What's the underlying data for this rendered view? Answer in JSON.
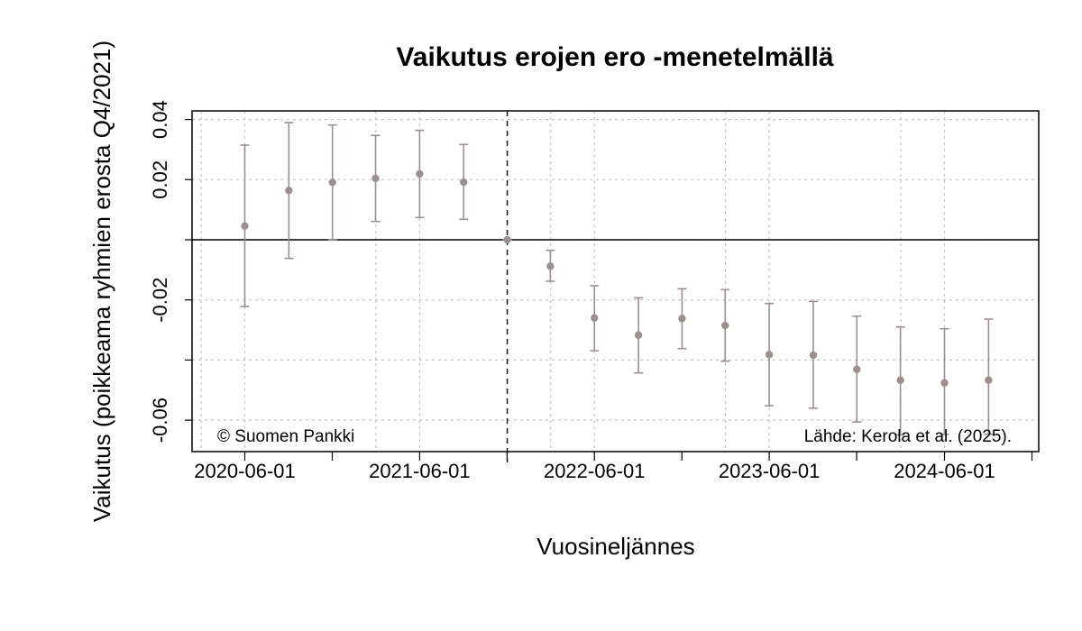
{
  "chart_data": {
    "type": "scatter",
    "title": "Vaikutus erojen ero -menetelmällä",
    "xlabel": "Vuosineljännes",
    "ylabel": "Vaikutus (poikkeama ryhmien erosta Q4/2021)",
    "x_tick_labels": [
      "2020-06-01",
      "2021-06-01",
      "2022-06-01",
      "2023-06-01",
      "2024-06-01"
    ],
    "y_tick_labels": [
      "-0.06",
      "-0.02",
      "0.02",
      "0.04"
    ],
    "ylim": [
      -0.07,
      0.043
    ],
    "reference_line_y": 0,
    "reference_quarter": "2021-12-01",
    "grid": true,
    "point_color": "#9e8f8f",
    "series": [
      {
        "x": [
          "2020-06-01",
          "2020-09-01",
          "2020-12-01",
          "2021-03-01",
          "2021-06-01",
          "2021-09-01",
          "2021-12-01",
          "2022-03-01",
          "2022-06-01",
          "2022-09-01",
          "2022-12-01",
          "2023-03-01",
          "2023-06-01",
          "2023-09-01",
          "2023-12-01",
          "2024-03-01",
          "2024-06-01",
          "2024-09-01"
        ],
        "values": [
          0.0046,
          0.0164,
          0.0191,
          0.0204,
          0.0219,
          0.0192,
          0.0,
          -0.0088,
          -0.026,
          -0.0317,
          -0.0262,
          -0.0285,
          -0.0382,
          -0.0384,
          -0.0431,
          -0.0467,
          -0.0476,
          -0.0467
        ],
        "lower": [
          -0.0222,
          -0.0062,
          -0.0001,
          0.0061,
          0.0074,
          0.0068,
          0.0,
          -0.0138,
          -0.0369,
          -0.0443,
          -0.0362,
          -0.0404,
          -0.0552,
          -0.056,
          -0.0606,
          -0.0649,
          -0.0647,
          -0.0647
        ],
        "upper": [
          0.0315,
          0.039,
          0.0382,
          0.0347,
          0.0364,
          0.0317,
          0.0,
          -0.0035,
          -0.0153,
          -0.0193,
          -0.0163,
          -0.0166,
          -0.0212,
          -0.0205,
          -0.0254,
          -0.029,
          -0.0296,
          -0.0264
        ]
      }
    ],
    "annotations": {
      "copyright": "© Suomen Pankki",
      "source": "Lähde: Kerola et al. (2025)."
    }
  }
}
